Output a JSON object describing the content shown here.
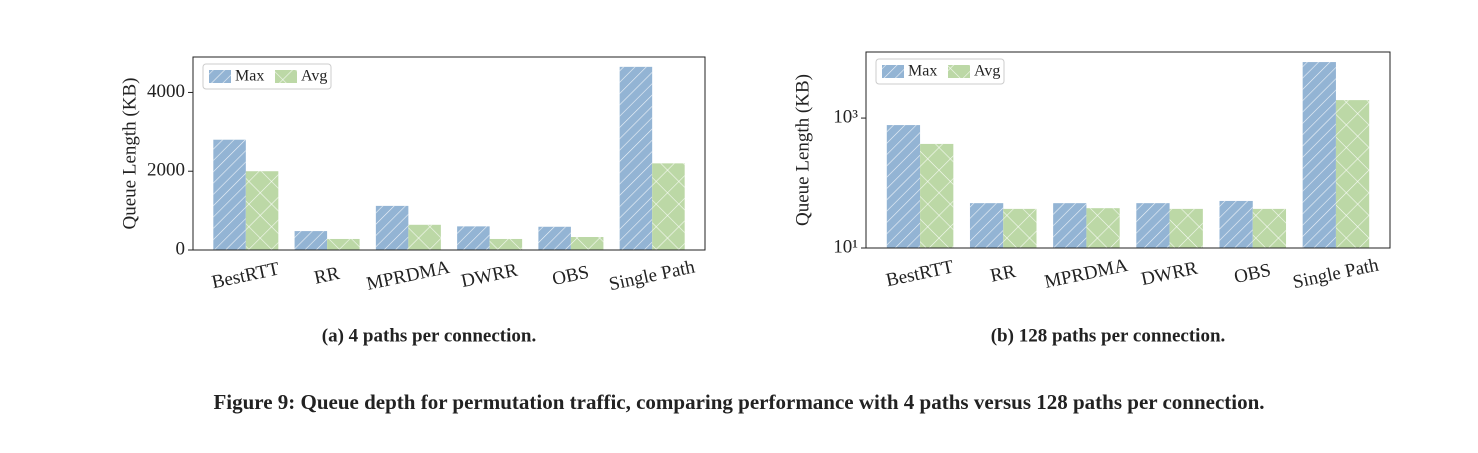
{
  "chart_data": [
    {
      "type": "bar",
      "caption": "(a) 4 paths per connection.",
      "ylabel": "Queue Length (KB)",
      "categories": [
        "BestRTT",
        "RR",
        "MPRDMA",
        "DWRR",
        "OBS",
        "Single Path"
      ],
      "series": [
        {
          "name": "Max",
          "color": "#93b4d4",
          "hatch": "diagonal",
          "values": [
            2800,
            480,
            1120,
            600,
            590,
            4650
          ]
        },
        {
          "name": "Avg",
          "color": "#bcd8a6",
          "hatch": "cross",
          "values": [
            2000,
            280,
            640,
            280,
            330,
            2200
          ]
        }
      ],
      "ylim": [
        0,
        4900
      ],
      "yticks": [
        0,
        2000,
        4000
      ],
      "log": false,
      "legend": "upper left"
    },
    {
      "type": "bar",
      "caption": "(b) 128 paths per connection.",
      "ylabel": "Queue Length (KB)",
      "categories": [
        "BestRTT",
        "RR",
        "MPRDMA",
        "DWRR",
        "OBS",
        "Single Path"
      ],
      "series": [
        {
          "name": "Max",
          "color": "#93b4d4",
          "hatch": "diagonal",
          "values": [
            780,
            49,
            49,
            49,
            53,
            7280
          ]
        },
        {
          "name": "Avg",
          "color": "#bcd8a6",
          "hatch": "cross",
          "values": [
            400,
            40,
            41,
            40,
            40,
            1890
          ]
        }
      ],
      "ylim": [
        10,
        10400
      ],
      "yticks": [
        {
          "value": 10,
          "label": "10¹"
        },
        {
          "value": 1000,
          "label": "10³"
        }
      ],
      "log": true,
      "legend": "upper left"
    }
  ],
  "figure_caption": "Figure 9: Queue depth for permutation traffic, comparing performance with 4 paths versus 128 paths per connection."
}
